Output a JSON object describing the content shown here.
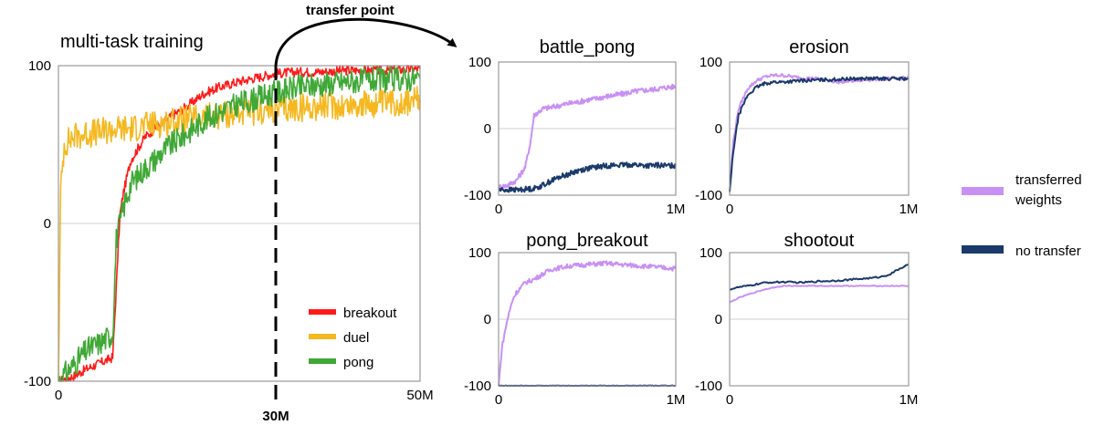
{
  "annotation": {
    "transfer_label": "transfer point",
    "transfer_x_label": "30M"
  },
  "legend_left": [
    {
      "name": "breakout",
      "color": "#ff1a1a"
    },
    {
      "name": "duel",
      "color": "#f5b820"
    },
    {
      "name": "pong",
      "color": "#3fa836"
    }
  ],
  "legend_right": [
    {
      "name": "transferred weights",
      "color": "#c890f5"
    },
    {
      "name": "no transfer",
      "color": "#1a3a6b"
    }
  ],
  "chart_data": [
    {
      "id": "multi",
      "type": "line",
      "title": "multi-task training",
      "xlim": [
        0,
        50
      ],
      "ylim": [
        -100,
        100
      ],
      "xticks": [
        "0",
        "50M"
      ],
      "yticks": [
        "-100",
        "0",
        "100"
      ],
      "series": [
        {
          "name": "breakout",
          "color": "#ff1a1a",
          "x": [
            0,
            2,
            4,
            6,
            7.5,
            8,
            8.5,
            9,
            10,
            12,
            15,
            18,
            20,
            22,
            25,
            28,
            30,
            33,
            36,
            40,
            45,
            50
          ],
          "y": [
            -100,
            -97,
            -92,
            -88,
            -85,
            -40,
            5,
            20,
            40,
            55,
            66,
            75,
            82,
            86,
            90,
            93,
            95,
            96,
            96,
            97,
            97,
            98
          ]
        },
        {
          "name": "duel",
          "color": "#f5b820",
          "x": [
            0,
            0.3,
            0.8,
            2,
            4,
            6,
            8,
            10,
            12,
            15,
            18,
            20,
            25,
            30,
            35,
            40,
            45,
            50
          ],
          "y": [
            -100,
            20,
            50,
            55,
            57,
            58,
            60,
            60,
            62,
            64,
            66,
            67,
            70,
            72,
            74,
            75,
            76,
            78
          ]
        },
        {
          "name": "pong",
          "color": "#3fa836",
          "x": [
            0,
            2,
            4,
            6,
            7.5,
            8,
            9,
            10,
            12,
            15,
            18,
            20,
            22,
            25,
            28,
            30,
            33,
            36,
            40,
            45,
            50
          ],
          "y": [
            -100,
            -90,
            -80,
            -75,
            -70,
            -10,
            10,
            25,
            35,
            48,
            58,
            65,
            70,
            76,
            80,
            83,
            86,
            88,
            90,
            91,
            92
          ]
        }
      ]
    },
    {
      "id": "battle_pong",
      "type": "line",
      "title": "battle_pong",
      "xlim": [
        0,
        1
      ],
      "ylim": [
        -100,
        100
      ],
      "xticks": [
        "0",
        "1M"
      ],
      "yticks": [
        "-100",
        "0",
        "100"
      ],
      "series": [
        {
          "name": "transferred weights",
          "color": "#c890f5",
          "x": [
            0,
            0.05,
            0.1,
            0.15,
            0.18,
            0.2,
            0.25,
            0.3,
            0.35,
            0.4,
            0.45,
            0.5,
            0.55,
            0.6,
            0.65,
            0.7,
            0.75,
            0.8,
            0.85,
            0.9,
            0.95,
            1.0
          ],
          "y": [
            -88,
            -85,
            -78,
            -58,
            -20,
            20,
            30,
            32,
            35,
            38,
            40,
            43,
            45,
            48,
            50,
            52,
            55,
            57,
            58,
            60,
            62,
            63
          ]
        },
        {
          "name": "no transfer",
          "color": "#1a3a6b",
          "x": [
            0,
            0.1,
            0.2,
            0.25,
            0.3,
            0.35,
            0.4,
            0.45,
            0.5,
            0.55,
            0.6,
            0.65,
            0.7,
            0.75,
            0.8,
            0.85,
            0.9,
            0.95,
            1.0
          ],
          "y": [
            -92,
            -92,
            -90,
            -85,
            -78,
            -72,
            -68,
            -63,
            -60,
            -58,
            -56,
            -55,
            -55,
            -54,
            -55,
            -56,
            -55,
            -56,
            -55
          ]
        }
      ]
    },
    {
      "id": "erosion",
      "type": "line",
      "title": "erosion",
      "xlim": [
        0,
        1
      ],
      "ylim": [
        -100,
        100
      ],
      "xticks": [
        "0",
        "1M"
      ],
      "yticks": [
        "-100",
        "0",
        "100"
      ],
      "series": [
        {
          "name": "transferred weights",
          "color": "#c890f5",
          "x": [
            0,
            0.02,
            0.05,
            0.1,
            0.15,
            0.2,
            0.25,
            0.3,
            0.4,
            0.5,
            0.6,
            0.7,
            0.8,
            0.9,
            1.0
          ],
          "y": [
            -95,
            -20,
            30,
            60,
            72,
            78,
            80,
            80,
            76,
            75,
            70,
            72,
            74,
            75,
            76
          ]
        },
        {
          "name": "no transfer",
          "color": "#1a3a6b",
          "x": [
            0,
            0.02,
            0.05,
            0.1,
            0.15,
            0.2,
            0.25,
            0.3,
            0.4,
            0.5,
            0.6,
            0.7,
            0.8,
            0.9,
            1.0
          ],
          "y": [
            -95,
            -35,
            20,
            50,
            62,
            68,
            70,
            70,
            72,
            73,
            74,
            75,
            75,
            75,
            75
          ]
        }
      ]
    },
    {
      "id": "pong_breakout",
      "type": "line",
      "title": "pong_breakout",
      "xlim": [
        0,
        1
      ],
      "ylim": [
        -100,
        100
      ],
      "xticks": [
        "0",
        "1M"
      ],
      "yticks": [
        "-100",
        "0",
        "100"
      ],
      "series": [
        {
          "name": "transferred weights",
          "color": "#c890f5",
          "x": [
            0,
            0.02,
            0.05,
            0.08,
            0.1,
            0.15,
            0.2,
            0.25,
            0.3,
            0.4,
            0.5,
            0.6,
            0.7,
            0.8,
            0.9,
            1.0
          ],
          "y": [
            -100,
            -40,
            0,
            30,
            40,
            55,
            60,
            68,
            75,
            80,
            82,
            84,
            82,
            80,
            78,
            76
          ]
        },
        {
          "name": "no transfer",
          "color": "#1a3a6b",
          "x": [
            0,
            0.2,
            0.4,
            0.6,
            0.8,
            1.0
          ],
          "y": [
            -100,
            -100,
            -100,
            -100,
            -100,
            -100
          ]
        }
      ]
    },
    {
      "id": "shootout",
      "type": "line",
      "title": "shootout",
      "xlim": [
        0,
        1
      ],
      "ylim": [
        -100,
        100
      ],
      "xticks": [
        "0",
        "1M"
      ],
      "yticks": [
        "-100",
        "0",
        "100"
      ],
      "series": [
        {
          "name": "transferred weights",
          "color": "#c890f5",
          "x": [
            0,
            0.05,
            0.1,
            0.15,
            0.2,
            0.25,
            0.3,
            0.4,
            0.5,
            0.6,
            0.7,
            0.8,
            0.9,
            1.0
          ],
          "y": [
            25,
            32,
            37,
            41,
            45,
            48,
            50,
            50,
            50,
            50,
            50,
            50,
            50,
            50
          ]
        },
        {
          "name": "no transfer",
          "color": "#1a3a6b",
          "x": [
            0,
            0.05,
            0.1,
            0.2,
            0.3,
            0.4,
            0.5,
            0.6,
            0.7,
            0.8,
            0.85,
            0.9,
            0.95,
            1.0
          ],
          "y": [
            45,
            48,
            50,
            55,
            56,
            55,
            57,
            58,
            60,
            62,
            64,
            68,
            76,
            82
          ]
        }
      ]
    }
  ]
}
